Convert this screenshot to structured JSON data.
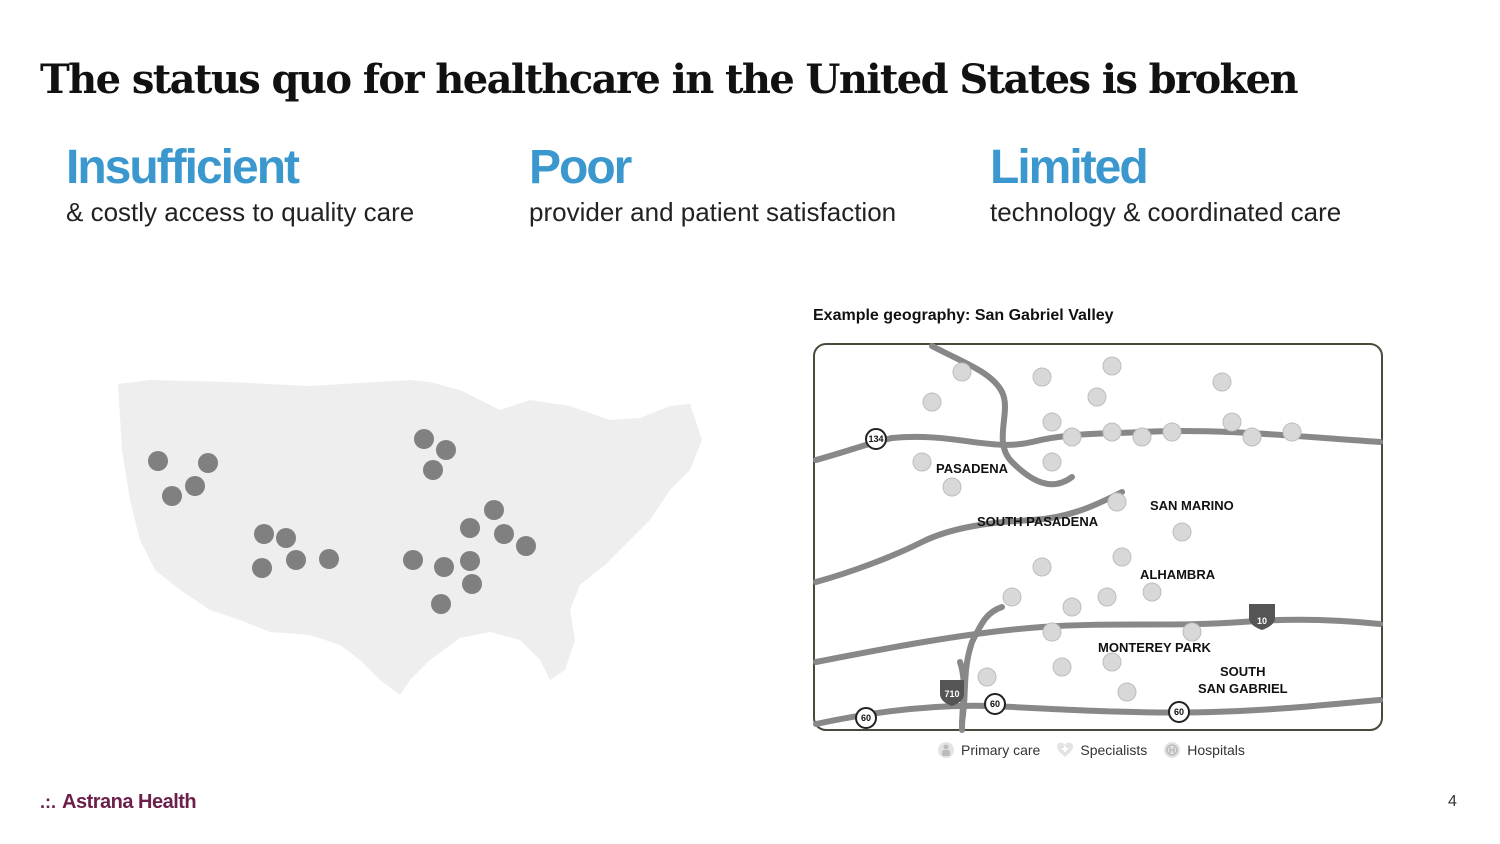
{
  "title": "The status quo for healthcare in the United States is broken",
  "columns": [
    {
      "heading": "Insufficient",
      "subtitle": "& costly access to quality care"
    },
    {
      "heading": "Poor",
      "subtitle": "provider and patient satisfaction"
    },
    {
      "heading": "Limited",
      "subtitle": "technology & coordinated care"
    }
  ],
  "geo_label": "Example geography: San Gabriel Valley",
  "map_places": [
    "PASADENA",
    "SOUTH PASADENA",
    "SAN MARINO",
    "ALHAMBRA",
    "MONTEREY PARK",
    "SOUTH",
    "SAN GABRIEL"
  ],
  "highway_shields": [
    "134",
    "10",
    "710",
    "60",
    "60",
    "60"
  ],
  "legend": {
    "primary": "Primary care",
    "specialists": "Specialists",
    "hospitals": "Hospitals"
  },
  "logo": {
    "mark": ".:.",
    "name": "Astrana Health"
  },
  "page_number": "4",
  "colors": {
    "accent": "#3a98cf",
    "brand": "#6b1f4a",
    "dot": "#808080",
    "land": "#eeeeee"
  }
}
